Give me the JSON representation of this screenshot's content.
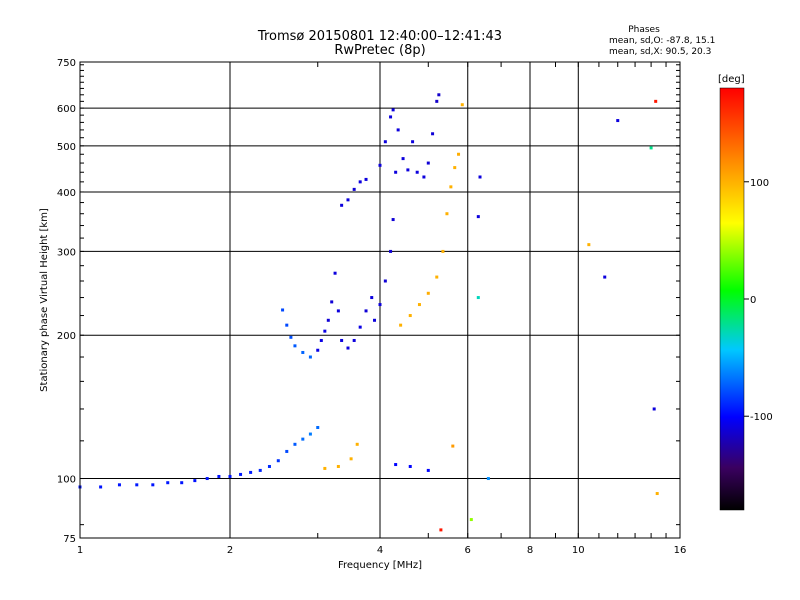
{
  "chart_data": {
    "type": "scatter",
    "title": "Tromsø 20150801 12:40:00–12:41:43",
    "subtitle": "RwPretec (8p)",
    "xlabel": "Frequency [MHz]",
    "ylabel": "Stationary phase Virtual Height [km]",
    "x_scale": "log",
    "y_scale": "log",
    "xlim": [
      1,
      16
    ],
    "ylim": [
      75,
      750
    ],
    "x_ticks": [
      1,
      2,
      4,
      6,
      8,
      10,
      16
    ],
    "x_tick_labels": [
      "1",
      "2",
      "4",
      "6",
      "8",
      "10",
      "16"
    ],
    "y_ticks": [
      75,
      100,
      200,
      300,
      400,
      500,
      600,
      750
    ],
    "y_tick_labels": [
      "75",
      "100",
      "200",
      "300",
      "400",
      "500",
      "600",
      "750"
    ],
    "grid": true,
    "stats": {
      "heading": "Phases",
      "line_o": "mean, sd,O:  -87.8, 15.1",
      "line_x": "mean, sd,X:   90.5, 20.3"
    },
    "colorbar": {
      "label": "[deg]",
      "ticks": [
        100,
        0,
        -100
      ],
      "tick_labels": [
        "100",
        "0",
        "-100"
      ],
      "range": [
        -180,
        180
      ]
    },
    "series": [
      {
        "points": [
          [
            1.0,
            96,
            -95
          ],
          [
            1.1,
            96,
            -95
          ],
          [
            1.2,
            97,
            -95
          ],
          [
            1.3,
            97,
            -94
          ],
          [
            1.4,
            97,
            -95
          ],
          [
            1.5,
            98,
            -94
          ],
          [
            1.6,
            98,
            -95
          ],
          [
            1.7,
            99,
            -96
          ],
          [
            1.8,
            100,
            -95
          ],
          [
            1.9,
            101,
            -96
          ],
          [
            2.0,
            101,
            -95
          ],
          [
            2.1,
            102,
            -94
          ],
          [
            2.2,
            103,
            -93
          ],
          [
            2.3,
            104,
            -90
          ],
          [
            2.4,
            106,
            -88
          ],
          [
            2.5,
            109,
            -86
          ],
          [
            2.6,
            114,
            -80
          ],
          [
            2.7,
            118,
            -75
          ],
          [
            2.8,
            121,
            -70
          ],
          [
            2.9,
            124,
            -65
          ],
          [
            3.0,
            128,
            -70
          ],
          [
            2.55,
            226,
            -80
          ],
          [
            2.6,
            210,
            -80
          ],
          [
            2.65,
            198,
            -78
          ],
          [
            2.7,
            190,
            -75
          ],
          [
            2.8,
            184,
            -72
          ],
          [
            2.9,
            180,
            -72
          ],
          [
            3.0,
            186,
            -108
          ],
          [
            3.05,
            195,
            -108
          ],
          [
            3.1,
            204,
            -108
          ],
          [
            3.15,
            215,
            -112
          ],
          [
            3.2,
            235,
            -112
          ],
          [
            3.25,
            270,
            -110
          ],
          [
            3.3,
            225,
            -110
          ],
          [
            3.35,
            195,
            -110
          ],
          [
            3.45,
            188,
            -110
          ],
          [
            3.55,
            195,
            -110
          ],
          [
            3.65,
            208,
            -108
          ],
          [
            3.75,
            225,
            -112
          ],
          [
            3.85,
            240,
            -110
          ],
          [
            3.9,
            215,
            -110
          ],
          [
            4.0,
            232,
            -110
          ],
          [
            4.1,
            260,
            -112
          ],
          [
            4.2,
            300,
            -112
          ],
          [
            4.25,
            350,
            -112
          ],
          [
            4.3,
            440,
            -110
          ],
          [
            3.35,
            375,
            -110
          ],
          [
            3.45,
            385,
            -110
          ],
          [
            3.55,
            405,
            -112
          ],
          [
            3.65,
            420,
            -110
          ],
          [
            3.75,
            425,
            -110
          ],
          [
            4.0,
            455,
            -110
          ],
          [
            4.1,
            510,
            -110
          ],
          [
            4.2,
            575,
            -110
          ],
          [
            4.25,
            595,
            -110
          ],
          [
            4.35,
            540,
            -110
          ],
          [
            4.45,
            470,
            -110
          ],
          [
            4.55,
            445,
            -110
          ],
          [
            4.65,
            510,
            -110
          ],
          [
            4.75,
            440,
            -110
          ],
          [
            4.9,
            430,
            -110
          ],
          [
            5.0,
            460,
            -112
          ],
          [
            5.1,
            530,
            -112
          ],
          [
            5.2,
            620,
            -115
          ],
          [
            5.25,
            640,
            -115
          ],
          [
            4.4,
            210,
            100
          ],
          [
            4.6,
            220,
            100
          ],
          [
            4.8,
            232,
            100
          ],
          [
            5.0,
            245,
            102
          ],
          [
            5.2,
            265,
            100
          ],
          [
            5.35,
            300,
            100
          ],
          [
            5.45,
            360,
            100
          ],
          [
            5.55,
            410,
            100
          ],
          [
            5.65,
            450,
            100
          ],
          [
            5.75,
            480,
            102
          ],
          [
            5.85,
            610,
            100
          ],
          [
            3.1,
            105,
            100
          ],
          [
            3.3,
            106,
            100
          ],
          [
            3.5,
            110,
            100
          ],
          [
            3.6,
            118,
            100
          ],
          [
            4.3,
            107,
            -100
          ],
          [
            4.6,
            106,
            -100
          ],
          [
            5.0,
            104,
            -100
          ],
          [
            5.6,
            117,
            110
          ],
          [
            6.3,
            355,
            -110
          ],
          [
            6.35,
            430,
            -110
          ],
          [
            6.3,
            240,
            -30
          ],
          [
            6.6,
            100,
            -60
          ],
          [
            12.0,
            565,
            -110
          ],
          [
            11.3,
            265,
            -110
          ],
          [
            14.0,
            495,
            -20
          ],
          [
            14.3,
            620,
            170
          ],
          [
            14.2,
            140,
            -110
          ],
          [
            14.4,
            93,
            100
          ],
          [
            10.5,
            310,
            100
          ],
          [
            6.1,
            82,
            40
          ],
          [
            5.3,
            78,
            170
          ]
        ]
      }
    ]
  }
}
